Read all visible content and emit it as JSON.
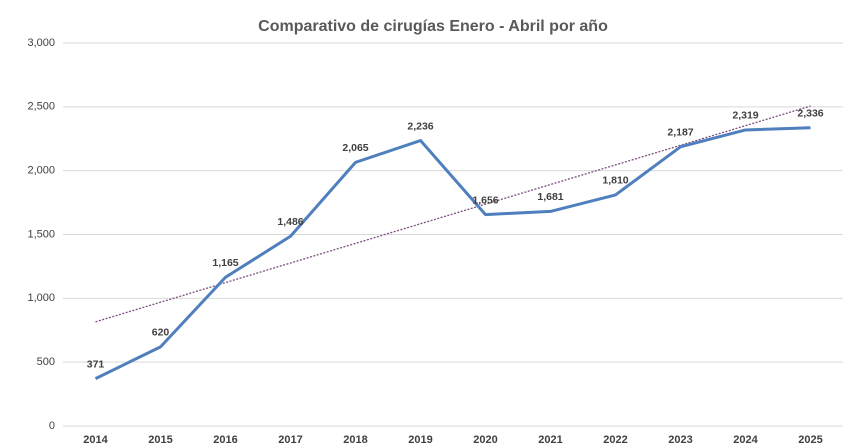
{
  "chart_data": {
    "type": "line",
    "title": "Comparativo de cirugías Enero - Abril por año",
    "categories": [
      "2014",
      "2015",
      "2016",
      "2017",
      "2018",
      "2019",
      "2020",
      "2021",
      "2022",
      "2023",
      "2024",
      "2025"
    ],
    "series": [
      {
        "color": "#4f7fbd",
        "values": [
          371,
          620,
          1165,
          1486,
          2065,
          2236,
          1656,
          1681,
          1810,
          2187,
          2319,
          2336
        ],
        "value_labels": [
          "371",
          "620",
          "1,165",
          "1,486",
          "2,065",
          "2,236",
          "1,656",
          "1,681",
          "1,810",
          "2,187",
          "2,319",
          "2,336"
        ]
      }
    ],
    "ylim": [
      0,
      3000
    ],
    "yticks": [
      0,
      500,
      {
        "value": 1000,
        "label": "1,000"
      },
      {
        "value": 1500,
        "label": "1,500"
      },
      {
        "value": 2000,
        "label": "2,000"
      },
      {
        "value": 2500,
        "label": "2,500"
      },
      {
        "value": 3000,
        "label": "3,000"
      }
    ],
    "grid": true,
    "trendline": true,
    "trendline_color": "#7b4f7f"
  }
}
